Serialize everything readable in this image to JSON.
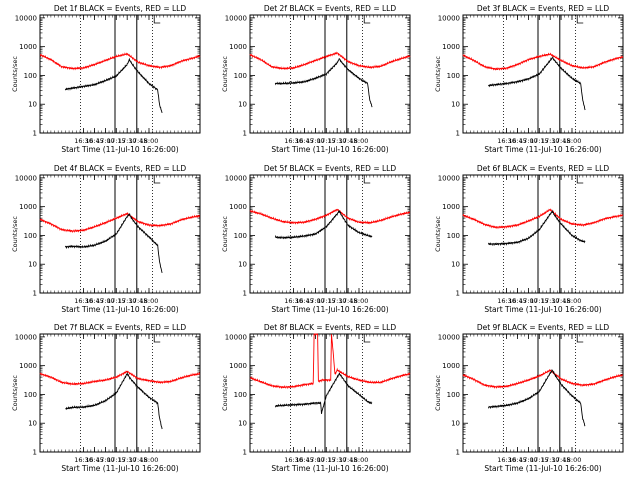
{
  "page": {
    "background": "#ffffff",
    "axis_color": "#000000"
  },
  "chart_data": [
    {
      "type": "line",
      "title": "Det 1f BLACK = Events, RED = LLD",
      "xlabel": "Start Time (11-Jul-10 16:26:00)",
      "ylabel": "Counts/sec",
      "xlim": [
        15.5,
        19.17
      ],
      "ylim_log10": [
        0,
        4.1
      ],
      "x_ticks": [
        "16:30",
        "16:45",
        "17:00",
        "17:15",
        "17:30",
        "17:45",
        "18:00"
      ],
      "y_ticks": [
        "1",
        "10",
        "100",
        "1000",
        "10000"
      ],
      "dotted_markers": [
        16.43,
        18.08
      ],
      "solid_markers": [
        17.22,
        17.72
      ],
      "bracket_marker": 18.12,
      "series": [
        {
          "name": "RED = LLD",
          "color": "#ff0000",
          "x": [
            15.5,
            15.75,
            16.0,
            16.25,
            16.5,
            16.75,
            17.0,
            17.25,
            17.5,
            17.75,
            18.0,
            18.25,
            18.5,
            18.75,
            19.0,
            19.17
          ],
          "log_y": [
            2.72,
            2.55,
            2.3,
            2.24,
            2.26,
            2.38,
            2.52,
            2.66,
            2.75,
            2.46,
            2.34,
            2.28,
            2.34,
            2.5,
            2.6,
            2.68
          ]
        },
        {
          "name": "BLACK = Events",
          "color": "#000000",
          "x": [
            16.08,
            16.25,
            16.5,
            16.75,
            17.0,
            17.25,
            17.5,
            17.55,
            17.6,
            17.75,
            18.0,
            18.2,
            18.24,
            18.3
          ],
          "log_y": [
            1.52,
            1.56,
            1.62,
            1.68,
            1.82,
            1.98,
            2.38,
            2.55,
            2.42,
            2.12,
            1.72,
            1.5,
            1.0,
            0.7
          ]
        }
      ]
    },
    {
      "type": "line",
      "title": "Det 2f BLACK = Events, RED = LLD",
      "xlabel": "Start Time (11-Jul-10 16:26:00)",
      "ylabel": "Counts/sec",
      "xlim": [
        15.5,
        19.17
      ],
      "ylim_log10": [
        0,
        4.1
      ],
      "x_ticks": [
        "16:30",
        "16:45",
        "17:00",
        "17:15",
        "17:30",
        "17:45",
        "18:00"
      ],
      "y_ticks": [
        "1",
        "10",
        "100",
        "1000",
        "10000"
      ],
      "dotted_markers": [
        16.43,
        18.08
      ],
      "solid_markers": [
        17.22,
        17.72
      ],
      "bracket_marker": 18.12,
      "series": [
        {
          "name": "RED = LLD",
          "color": "#ff0000",
          "x": [
            15.5,
            15.75,
            16.0,
            16.25,
            16.5,
            16.75,
            17.0,
            17.25,
            17.5,
            17.75,
            18.0,
            18.25,
            18.5,
            18.75,
            19.0,
            19.17
          ],
          "log_y": [
            2.72,
            2.55,
            2.3,
            2.24,
            2.26,
            2.38,
            2.52,
            2.66,
            2.78,
            2.48,
            2.34,
            2.28,
            2.32,
            2.48,
            2.6,
            2.68
          ]
        },
        {
          "name": "BLACK = Events",
          "color": "#000000",
          "x": [
            16.08,
            16.25,
            16.5,
            16.75,
            17.0,
            17.25,
            17.5,
            17.55,
            17.6,
            17.75,
            18.0,
            18.2,
            18.24,
            18.3
          ],
          "log_y": [
            1.72,
            1.72,
            1.74,
            1.78,
            1.9,
            2.05,
            2.44,
            2.58,
            2.46,
            2.2,
            1.9,
            1.72,
            1.2,
            0.9
          ]
        }
      ]
    },
    {
      "type": "line",
      "title": "Det 3f BLACK = Events, RED = LLD",
      "xlabel": "Start Time (11-Jul-10 16:26:00)",
      "ylabel": "Counts/sec",
      "xlim": [
        15.5,
        19.17
      ],
      "ylim_log10": [
        0,
        4.1
      ],
      "x_ticks": [
        "16:30",
        "16:45",
        "17:00",
        "17:15",
        "17:30",
        "17:45",
        "18:00"
      ],
      "y_ticks": [
        "1",
        "10",
        "100",
        "1000",
        "10000"
      ],
      "dotted_markers": [
        16.43,
        18.08
      ],
      "solid_markers": [
        17.22,
        17.72
      ],
      "bracket_marker": 18.12,
      "series": [
        {
          "name": "RED = LLD",
          "color": "#ff0000",
          "x": [
            15.5,
            15.75,
            16.0,
            16.25,
            16.5,
            16.75,
            17.0,
            17.25,
            17.5,
            17.75,
            18.0,
            18.25,
            18.5,
            18.75,
            19.0,
            19.17
          ],
          "log_y": [
            2.7,
            2.52,
            2.3,
            2.22,
            2.25,
            2.38,
            2.55,
            2.66,
            2.74,
            2.52,
            2.34,
            2.26,
            2.3,
            2.46,
            2.58,
            2.65
          ]
        },
        {
          "name": "BLACK = Events",
          "color": "#000000",
          "x": [
            16.08,
            16.25,
            16.5,
            16.75,
            17.0,
            17.25,
            17.5,
            17.55,
            17.6,
            17.75,
            18.0,
            18.2,
            18.24,
            18.3
          ],
          "log_y": [
            1.65,
            1.68,
            1.72,
            1.78,
            1.88,
            2.05,
            2.52,
            2.62,
            2.52,
            2.25,
            1.9,
            1.72,
            1.2,
            0.8
          ]
        }
      ]
    },
    {
      "type": "line",
      "title": "Det 4f BLACK = Events, RED = LLD",
      "xlabel": "Start Time (11-Jul-10 16:26:00)",
      "ylabel": "Counts/sec",
      "xlim": [
        15.5,
        19.17
      ],
      "ylim_log10": [
        0,
        4.1
      ],
      "x_ticks": [
        "16:30",
        "16:45",
        "17:00",
        "17:15",
        "17:30",
        "17:45",
        "18:00"
      ],
      "y_ticks": [
        "1",
        "10",
        "100",
        "1000",
        "10000"
      ],
      "dotted_markers": [
        16.43,
        18.08
      ],
      "solid_markers": [
        17.22,
        17.72
      ],
      "bracket_marker": 18.12,
      "series": [
        {
          "name": "RED = LLD",
          "color": "#ff0000",
          "x": [
            15.5,
            15.75,
            16.0,
            16.25,
            16.5,
            16.75,
            17.0,
            17.25,
            17.5,
            17.75,
            18.0,
            18.25,
            18.5,
            18.75,
            19.0,
            19.17
          ],
          "log_y": [
            2.56,
            2.4,
            2.2,
            2.15,
            2.18,
            2.3,
            2.44,
            2.6,
            2.76,
            2.48,
            2.36,
            2.34,
            2.4,
            2.55,
            2.64,
            2.68
          ]
        },
        {
          "name": "BLACK = Events",
          "color": "#000000",
          "x": [
            16.08,
            16.25,
            16.5,
            16.75,
            17.0,
            17.25,
            17.5,
            17.55,
            17.6,
            17.75,
            18.0,
            18.2,
            18.24,
            18.3
          ],
          "log_y": [
            1.6,
            1.62,
            1.6,
            1.66,
            1.8,
            2.05,
            2.66,
            2.74,
            2.6,
            2.3,
            1.95,
            1.65,
            1.1,
            0.7
          ]
        }
      ]
    },
    {
      "type": "line",
      "title": "Det 5f BLACK = Events, RED = LLD",
      "xlabel": "Start Time (11-Jul-10 16:26:00)",
      "ylabel": "Counts/sec",
      "xlim": [
        15.5,
        19.17
      ],
      "ylim_log10": [
        0,
        4.1
      ],
      "x_ticks": [
        "16:30",
        "16:45",
        "17:00",
        "17:15",
        "17:30",
        "17:45",
        "18:00"
      ],
      "y_ticks": [
        "1",
        "10",
        "100",
        "1000",
        "10000"
      ],
      "dotted_markers": [
        16.43,
        18.08
      ],
      "solid_markers": [
        17.22,
        17.72
      ],
      "bracket_marker": 18.12,
      "series": [
        {
          "name": "RED = LLD",
          "color": "#ff0000",
          "x": [
            15.5,
            15.75,
            16.0,
            16.25,
            16.5,
            16.75,
            17.0,
            17.25,
            17.5,
            17.75,
            18.0,
            18.25,
            18.5,
            18.75,
            19.0,
            19.17
          ],
          "log_y": [
            2.85,
            2.75,
            2.6,
            2.48,
            2.44,
            2.46,
            2.56,
            2.7,
            2.9,
            2.6,
            2.46,
            2.44,
            2.52,
            2.65,
            2.75,
            2.8
          ]
        },
        {
          "name": "BLACK = Events",
          "color": "#000000",
          "x": [
            16.08,
            16.25,
            16.5,
            16.75,
            17.0,
            17.25,
            17.5,
            17.55,
            17.6,
            17.75,
            18.0,
            18.2,
            18.24,
            18.3
          ],
          "log_y": [
            1.94,
            1.92,
            1.94,
            1.98,
            2.05,
            2.3,
            2.75,
            2.85,
            2.7,
            2.35,
            2.1,
            2.0,
            1.98,
            1.96
          ]
        }
      ]
    },
    {
      "type": "line",
      "title": "Det 6f BLACK = Events, RED = LLD",
      "xlabel": "Start Time (11-Jul-10 16:26:00)",
      "ylabel": "Counts/sec",
      "xlim": [
        15.5,
        19.17
      ],
      "ylim_log10": [
        0,
        4.1
      ],
      "x_ticks": [
        "16:30",
        "16:45",
        "17:00",
        "17:15",
        "17:30",
        "17:45",
        "18:00"
      ],
      "y_ticks": [
        "1",
        "10",
        "100",
        "1000",
        "10000"
      ],
      "dotted_markers": [
        16.43,
        18.08
      ],
      "solid_markers": [
        17.22,
        17.72
      ],
      "bracket_marker": 18.12,
      "series": [
        {
          "name": "RED = LLD",
          "color": "#ff0000",
          "x": [
            15.5,
            15.75,
            16.0,
            16.25,
            16.5,
            16.75,
            17.0,
            17.25,
            17.5,
            17.75,
            18.0,
            18.25,
            18.5,
            18.75,
            19.0,
            19.17
          ],
          "log_y": [
            2.7,
            2.56,
            2.38,
            2.28,
            2.3,
            2.36,
            2.5,
            2.66,
            2.9,
            2.56,
            2.4,
            2.36,
            2.44,
            2.58,
            2.66,
            2.7
          ]
        },
        {
          "name": "BLACK = Events",
          "color": "#000000",
          "x": [
            16.08,
            16.25,
            16.5,
            16.75,
            17.0,
            17.25,
            17.5,
            17.55,
            17.6,
            17.75,
            18.0,
            18.2,
            18.24,
            18.3
          ],
          "log_y": [
            1.7,
            1.7,
            1.72,
            1.76,
            1.9,
            2.2,
            2.74,
            2.84,
            2.7,
            2.4,
            2.0,
            1.82,
            1.8,
            1.78
          ]
        }
      ]
    },
    {
      "type": "line",
      "title": "Det 7f BLACK = Events, RED = LLD",
      "xlabel": "Start Time (11-Jul-10 16:26:00)",
      "ylabel": "Counts/sec",
      "xlim": [
        15.5,
        19.17
      ],
      "ylim_log10": [
        0,
        4.1
      ],
      "x_ticks": [
        "16:30",
        "16:45",
        "17:00",
        "17:15",
        "17:30",
        "17:45",
        "18:00"
      ],
      "y_ticks": [
        "1",
        "10",
        "100",
        "1000",
        "10000"
      ],
      "dotted_markers": [
        16.43,
        18.08
      ],
      "solid_markers": [
        17.22,
        17.72
      ],
      "bracket_marker": 18.12,
      "series": [
        {
          "name": "RED = LLD",
          "color": "#ff0000",
          "x": [
            15.5,
            15.75,
            16.0,
            16.25,
            16.5,
            16.75,
            17.0,
            17.25,
            17.5,
            17.75,
            18.0,
            18.25,
            18.5,
            18.75,
            19.0,
            19.17
          ],
          "log_y": [
            2.72,
            2.6,
            2.42,
            2.36,
            2.38,
            2.45,
            2.5,
            2.6,
            2.8,
            2.55,
            2.48,
            2.42,
            2.45,
            2.58,
            2.68,
            2.72
          ]
        },
        {
          "name": "BLACK = Events",
          "color": "#000000",
          "x": [
            16.08,
            16.25,
            16.5,
            16.75,
            17.0,
            17.25,
            17.5,
            17.55,
            17.6,
            17.75,
            18.0,
            18.2,
            18.24,
            18.3
          ],
          "log_y": [
            1.5,
            1.55,
            1.56,
            1.62,
            1.78,
            2.05,
            2.72,
            2.6,
            2.5,
            2.25,
            1.9,
            1.7,
            1.2,
            0.8
          ]
        }
      ]
    },
    {
      "type": "line",
      "title": "Det 8f BLACK = Events, RED = LLD",
      "xlabel": "Start Time (11-Jul-10 16:26:00)",
      "ylabel": "Counts/sec",
      "xlim": [
        15.5,
        19.17
      ],
      "ylim_log10": [
        0,
        4.1
      ],
      "x_ticks": [
        "16:30",
        "16:45",
        "17:00",
        "17:15",
        "17:30",
        "17:45",
        "18:00"
      ],
      "y_ticks": [
        "1",
        "10",
        "100",
        "1000",
        "10000"
      ],
      "dotted_markers": [
        16.43,
        18.08
      ],
      "solid_markers": [
        17.22,
        17.72
      ],
      "bracket_marker": 18.12,
      "series": [
        {
          "name": "RED = LLD",
          "color": "#ff0000",
          "x": [
            15.5,
            15.75,
            16.0,
            16.25,
            16.5,
            16.75,
            16.95,
            16.97,
            17.0,
            17.05,
            17.07,
            17.15,
            17.25,
            17.35,
            17.37,
            17.45,
            17.5,
            17.75,
            18.0,
            18.25,
            18.5,
            18.75,
            19.0,
            19.17
          ],
          "log_y": [
            2.58,
            2.44,
            2.3,
            2.25,
            2.27,
            2.34,
            2.38,
            4.1,
            4.1,
            4.1,
            2.45,
            2.5,
            2.5,
            2.5,
            4.1,
            2.7,
            2.85,
            2.62,
            2.5,
            2.42,
            2.42,
            2.55,
            2.66,
            2.72
          ]
        },
        {
          "name": "BLACK = Events",
          "color": "#000000",
          "x": [
            16.08,
            16.25,
            16.5,
            16.75,
            17.0,
            17.12,
            17.14,
            17.25,
            17.5,
            17.55,
            17.6,
            17.75,
            18.0,
            18.2,
            18.24,
            18.3
          ],
          "log_y": [
            1.6,
            1.62,
            1.64,
            1.66,
            1.7,
            1.7,
            1.35,
            1.95,
            2.6,
            2.72,
            2.62,
            2.3,
            2.0,
            1.75,
            1.72,
            1.7
          ]
        }
      ]
    },
    {
      "type": "line",
      "title": "Det 9f BLACK = Events, RED = LLD",
      "xlabel": "Start Time (11-Jul-10 16:26:00)",
      "ylabel": "Counts/sec",
      "xlim": [
        15.5,
        19.17
      ],
      "ylim_log10": [
        0,
        4.1
      ],
      "x_ticks": [
        "16:30",
        "16:45",
        "17:00",
        "17:15",
        "17:30",
        "17:45",
        "18:00"
      ],
      "y_ticks": [
        "1",
        "10",
        "100",
        "1000",
        "10000"
      ],
      "dotted_markers": [
        16.43,
        18.08
      ],
      "solid_markers": [
        17.22,
        17.72
      ],
      "bracket_marker": 18.12,
      "series": [
        {
          "name": "RED = LLD",
          "color": "#ff0000",
          "x": [
            15.5,
            15.75,
            16.0,
            16.25,
            16.5,
            16.75,
            17.0,
            17.25,
            17.5,
            17.75,
            18.0,
            18.25,
            18.5,
            18.75,
            19.0,
            19.17
          ],
          "log_y": [
            2.68,
            2.52,
            2.32,
            2.26,
            2.28,
            2.38,
            2.5,
            2.64,
            2.84,
            2.54,
            2.38,
            2.32,
            2.36,
            2.5,
            2.62,
            2.68
          ]
        },
        {
          "name": "BLACK = Events",
          "color": "#000000",
          "x": [
            16.08,
            16.25,
            16.5,
            16.75,
            17.0,
            17.25,
            17.5,
            17.55,
            17.6,
            17.75,
            18.0,
            18.2,
            18.24,
            18.3
          ],
          "log_y": [
            1.56,
            1.58,
            1.62,
            1.7,
            1.85,
            2.1,
            2.74,
            2.84,
            2.7,
            2.35,
            1.95,
            1.7,
            1.2,
            0.9
          ]
        }
      ]
    }
  ]
}
